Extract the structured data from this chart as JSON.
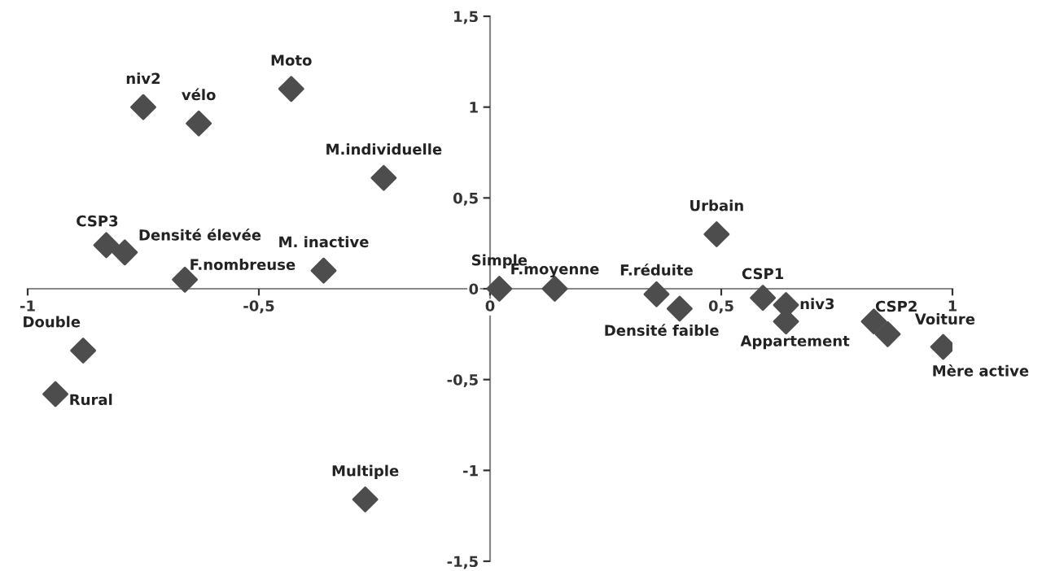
{
  "chart_data": {
    "type": "scatter",
    "marker": "diamond",
    "grid": false,
    "xlim": [
      -1,
      1
    ],
    "ylim": [
      -1.5,
      1.5
    ],
    "xticks": [
      -1,
      {
        "value": -0.5,
        "label": "-0,5"
      },
      0,
      {
        "value": 0.5,
        "label": "0,5"
      },
      1
    ],
    "yticks": [
      {
        "value": -1.5,
        "label": "-1,5"
      },
      -1,
      {
        "value": -0.5,
        "label": "-0,5"
      },
      0,
      {
        "value": 0.5,
        "label": "0,5"
      },
      1,
      {
        "value": 1.5,
        "label": "1,5"
      }
    ],
    "series": [
      {
        "color": "#4d4d4d",
        "x": [
          -0.75,
          -0.63,
          -0.43,
          -0.23,
          -0.83,
          -0.79,
          -0.66,
          -0.36,
          0.02,
          -0.88,
          -0.94,
          -0.27,
          0.14,
          0.49,
          0.36,
          0.41,
          0.59,
          0.64,
          0.64,
          0.83,
          0.86,
          0.98
        ],
        "values": [
          1.0,
          0.91,
          1.1,
          0.61,
          0.24,
          0.2,
          0.05,
          0.1,
          0.0,
          -0.34,
          -0.58,
          -1.16,
          0.0,
          0.3,
          -0.03,
          -0.11,
          -0.05,
          -0.09,
          -0.18,
          -0.18,
          -0.25,
          -0.32
        ]
      }
    ],
    "annotations": [
      {
        "text": "niv2",
        "x": -0.75,
        "y": 1.0
      },
      {
        "text": "vélo",
        "x": -0.63,
        "y": 0.91
      },
      {
        "text": "Moto",
        "x": -0.43,
        "y": 1.1
      },
      {
        "text": "M.individuelle",
        "x": -0.23,
        "y": 0.61
      },
      {
        "text": "CSP3",
        "x": -0.83,
        "y": 0.24
      },
      {
        "text": "Densité élevée",
        "x": -0.79,
        "y": 0.2
      },
      {
        "text": "F.nombreuse",
        "x": -0.66,
        "y": 0.05
      },
      {
        "text": "M. inactive",
        "x": -0.36,
        "y": 0.1
      },
      {
        "text": "Simple",
        "x": 0.02,
        "y": 0.0
      },
      {
        "text": "Double",
        "x": -0.88,
        "y": -0.34
      },
      {
        "text": "Rural",
        "x": -0.94,
        "y": -0.58
      },
      {
        "text": "Multiple",
        "x": -0.27,
        "y": -1.16
      },
      {
        "text": "F.moyenne",
        "x": 0.14,
        "y": 0.0
      },
      {
        "text": "Urbain",
        "x": 0.49,
        "y": 0.3
      },
      {
        "text": "F.réduite",
        "x": 0.36,
        "y": -0.03
      },
      {
        "text": "Densité faible",
        "x": 0.41,
        "y": -0.11
      },
      {
        "text": "CSP1",
        "x": 0.59,
        "y": -0.05
      },
      {
        "text": "niv3",
        "x": 0.64,
        "y": -0.09
      },
      {
        "text": "Appartement",
        "x": 0.64,
        "y": -0.18
      },
      {
        "text": "CSP2",
        "x": 0.83,
        "y": -0.18
      },
      {
        "text": "Voiture",
        "x": 0.86,
        "y": -0.25
      },
      {
        "text": "Mère active",
        "x": 0.98,
        "y": -0.32
      }
    ]
  }
}
